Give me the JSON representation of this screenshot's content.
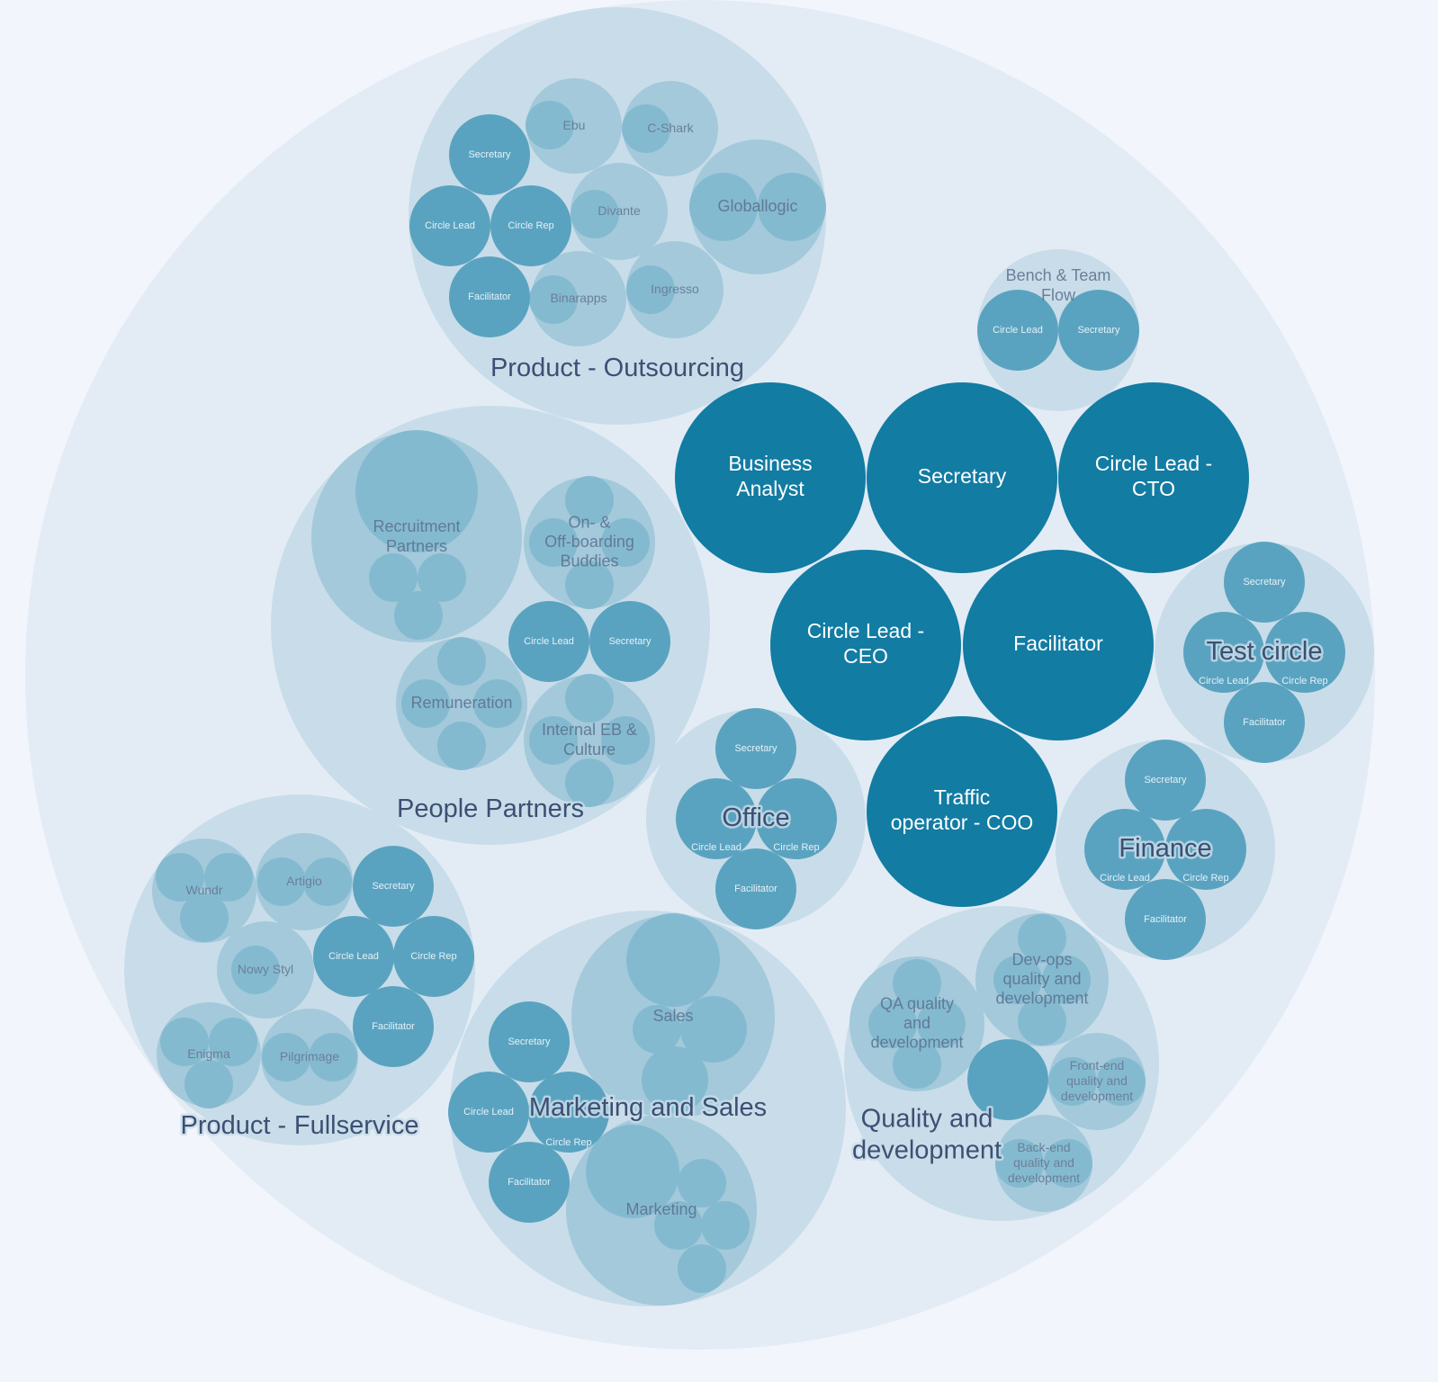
{
  "colors": {
    "background": "#f3f5fc",
    "outer_circle": "#e3ecf5",
    "circle_level1": "#c8dde9",
    "circle_level2": "#a3c9db",
    "circle_level3": "#84bad0",
    "role": "#5aa3c0",
    "top_role": "#127ca3",
    "label": "#3d4f73"
  },
  "labels": {
    "product_outsourcing": [
      "Product - Outsourcing"
    ],
    "ebu": [
      "Ebu"
    ],
    "cshark": [
      "C-Shark"
    ],
    "divante": [
      "Divante"
    ],
    "globallogic": [
      "Globallogic"
    ],
    "binarapps": [
      "Binarapps"
    ],
    "ingresso": [
      "Ingresso"
    ],
    "po_secretary": [
      "Secretary"
    ],
    "po_circle_lead": [
      "Circle Lead"
    ],
    "po_circle_rep": [
      "Circle Rep"
    ],
    "po_facilitator": [
      "Facilitator"
    ],
    "bench": [
      "Bench & Team",
      "Flow"
    ],
    "bench_circle_lead": [
      "Circle Lead"
    ],
    "bench_secretary": [
      "Secretary"
    ],
    "business_analyst": [
      "Business",
      "Analyst"
    ],
    "secretary": [
      "Secretary"
    ],
    "cto": [
      "Circle Lead -",
      "CTO"
    ],
    "ceo": [
      "Circle Lead -",
      "CEO"
    ],
    "facilitator": [
      "Facilitator"
    ],
    "coo": [
      "Traffic",
      "operator - COO"
    ],
    "people_partners": [
      "People Partners"
    ],
    "recruitment": [
      "Recruitment",
      "Partners"
    ],
    "onboarding": [
      "On- &",
      "Off-boarding",
      "Buddies"
    ],
    "pp_circle_lead": [
      "Circle Lead"
    ],
    "pp_secretary": [
      "Secretary"
    ],
    "remuneration": [
      "Remuneration"
    ],
    "internal_eb": [
      "Internal EB &",
      "Culture"
    ],
    "office": [
      "Office"
    ],
    "office_secretary": [
      "Secretary"
    ],
    "office_circle_lead": [
      "Circle Lead"
    ],
    "office_circle_rep": [
      "Circle Rep"
    ],
    "office_facilitator": [
      "Facilitator"
    ],
    "test_circle": [
      "Test circle"
    ],
    "tc_secretary": [
      "Secretary"
    ],
    "tc_circle_lead": [
      "Circle Lead"
    ],
    "tc_circle_rep": [
      "Circle Rep"
    ],
    "tc_facilitator": [
      "Facilitator"
    ],
    "finance": [
      "Finance"
    ],
    "fin_secretary": [
      "Secretary"
    ],
    "fin_circle_lead": [
      "Circle Lead"
    ],
    "fin_circle_rep": [
      "Circle Rep"
    ],
    "fin_facilitator": [
      "Facilitator"
    ],
    "product_fullservice": [
      "Product -",
      "Fullservice"
    ],
    "wundr": [
      "Wundr"
    ],
    "artigio": [
      "Artigio"
    ],
    "nowy_styl": [
      "Nowy Styl"
    ],
    "enigma": [
      "Enigma"
    ],
    "pilgrimage": [
      "Pilgrimage"
    ],
    "pf_secretary": [
      "Secretary"
    ],
    "pf_circle_lead": [
      "Circle Lead"
    ],
    "pf_circle_rep": [
      "Circle Rep"
    ],
    "pf_facilitator": [
      "Facilitator"
    ],
    "marketing_sales": [
      "Marketing and Sales"
    ],
    "sales": [
      "Sales"
    ],
    "marketing": [
      "Marketing"
    ],
    "ms_secretary": [
      "Secretary"
    ],
    "ms_circle_lead": [
      "Circle Lead"
    ],
    "ms_circle_rep": [
      "Circle Rep"
    ],
    "ms_facilitator": [
      "Facilitator"
    ],
    "quality": [
      "Quality and",
      "development"
    ],
    "qa": [
      "QA quality",
      "and",
      "development"
    ],
    "devops": [
      "Dev-ops",
      "quality and",
      "development"
    ],
    "frontend": [
      "Front-end",
      "quality and",
      "development"
    ],
    "backend": [
      "Back-end",
      "quality and",
      "development"
    ]
  }
}
